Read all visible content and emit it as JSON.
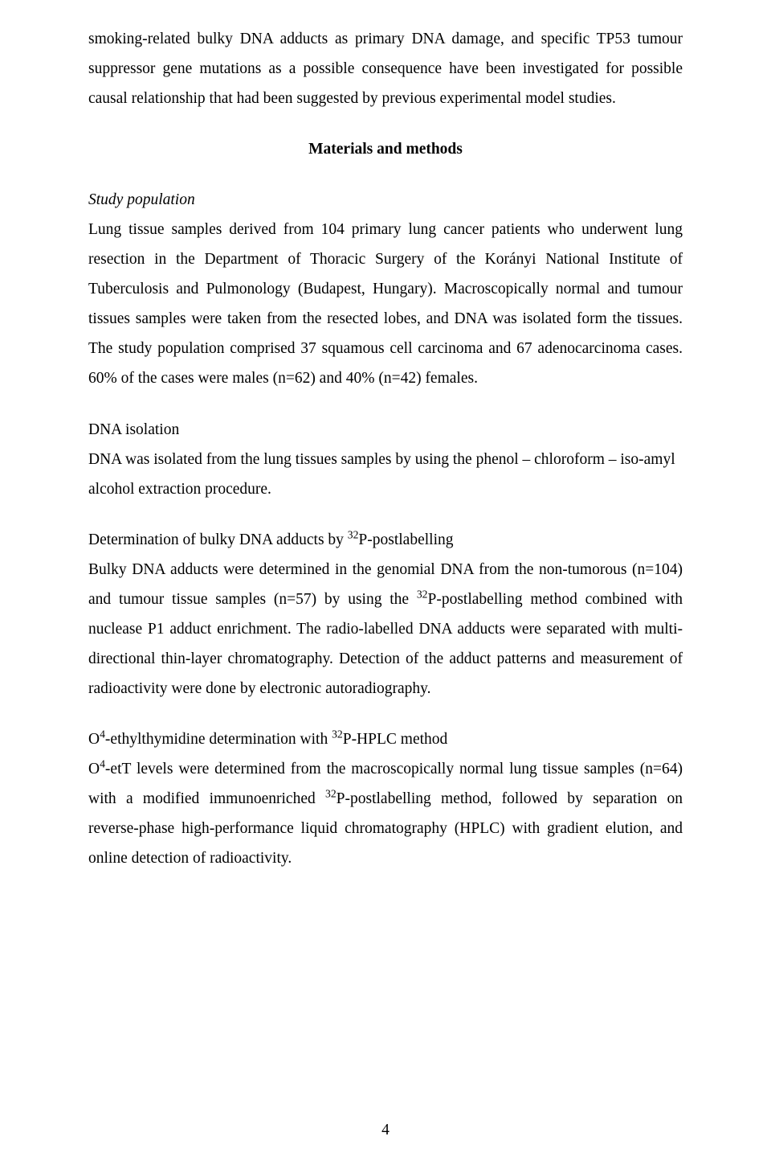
{
  "intro_paragraph": "smoking-related bulky DNA adducts as primary DNA damage, and specific TP53 tumour suppressor gene mutations as a possible consequence have been investigated for possible causal relationship that had been suggested by previous experimental model studies.",
  "section_heading": "Materials and methods",
  "study_population": {
    "heading": "Study population",
    "body": "Lung tissue samples derived from 104 primary lung cancer patients who underwent lung resection in the Department of Thoracic Surgery of the Korányi National Institute of Tuberculosis and Pulmonology (Budapest, Hungary). Macroscopically normal and tumour tissues samples were taken from the resected lobes, and DNA was isolated form the tissues. The study population comprised 37 squamous cell carcinoma and 67 adenocarcinoma cases. 60% of the cases were males (n=62) and 40% (n=42) females."
  },
  "dna_isolation": {
    "heading": "DNA isolation",
    "body": "DNA was isolated from the lung tissues samples by using the phenol – chloroform – iso-amyl alcohol extraction procedure."
  },
  "bulky_dna": {
    "heading_pre": "Determination of bulky DNA adducts by ",
    "heading_sup": "32",
    "heading_post": "P-postlabelling",
    "body_1": "Bulky DNA adducts were determined in the genomial DNA from the non-tumorous (n=104) and tumour tissue samples (n=57) by using the ",
    "body_sup": "32",
    "body_2": "P-postlabelling method combined with nuclease P1 adduct enrichment. The radio-labelled DNA adducts were separated with multi-directional thin-layer chromatography. Detection of the adduct patterns and measurement of radioactivity were done by electronic autoradiography."
  },
  "o4": {
    "heading_pre": "O",
    "heading_sup1": "4",
    "heading_mid": "-ethylthymidine determination with ",
    "heading_sup2": "32",
    "heading_post": "P-HPLC method",
    "body_pre": "O",
    "body_sup1": "4",
    "body_mid": "-etT levels were determined from the macroscopically normal lung tissue samples (n=64) with a modified immunoenriched ",
    "body_sup2": "32",
    "body_post": "P-postlabelling method, followed by separation on reverse-phase high-performance liquid chromatography (HPLC) with gradient elution, and online detection of radioactivity."
  },
  "page_number": "4"
}
